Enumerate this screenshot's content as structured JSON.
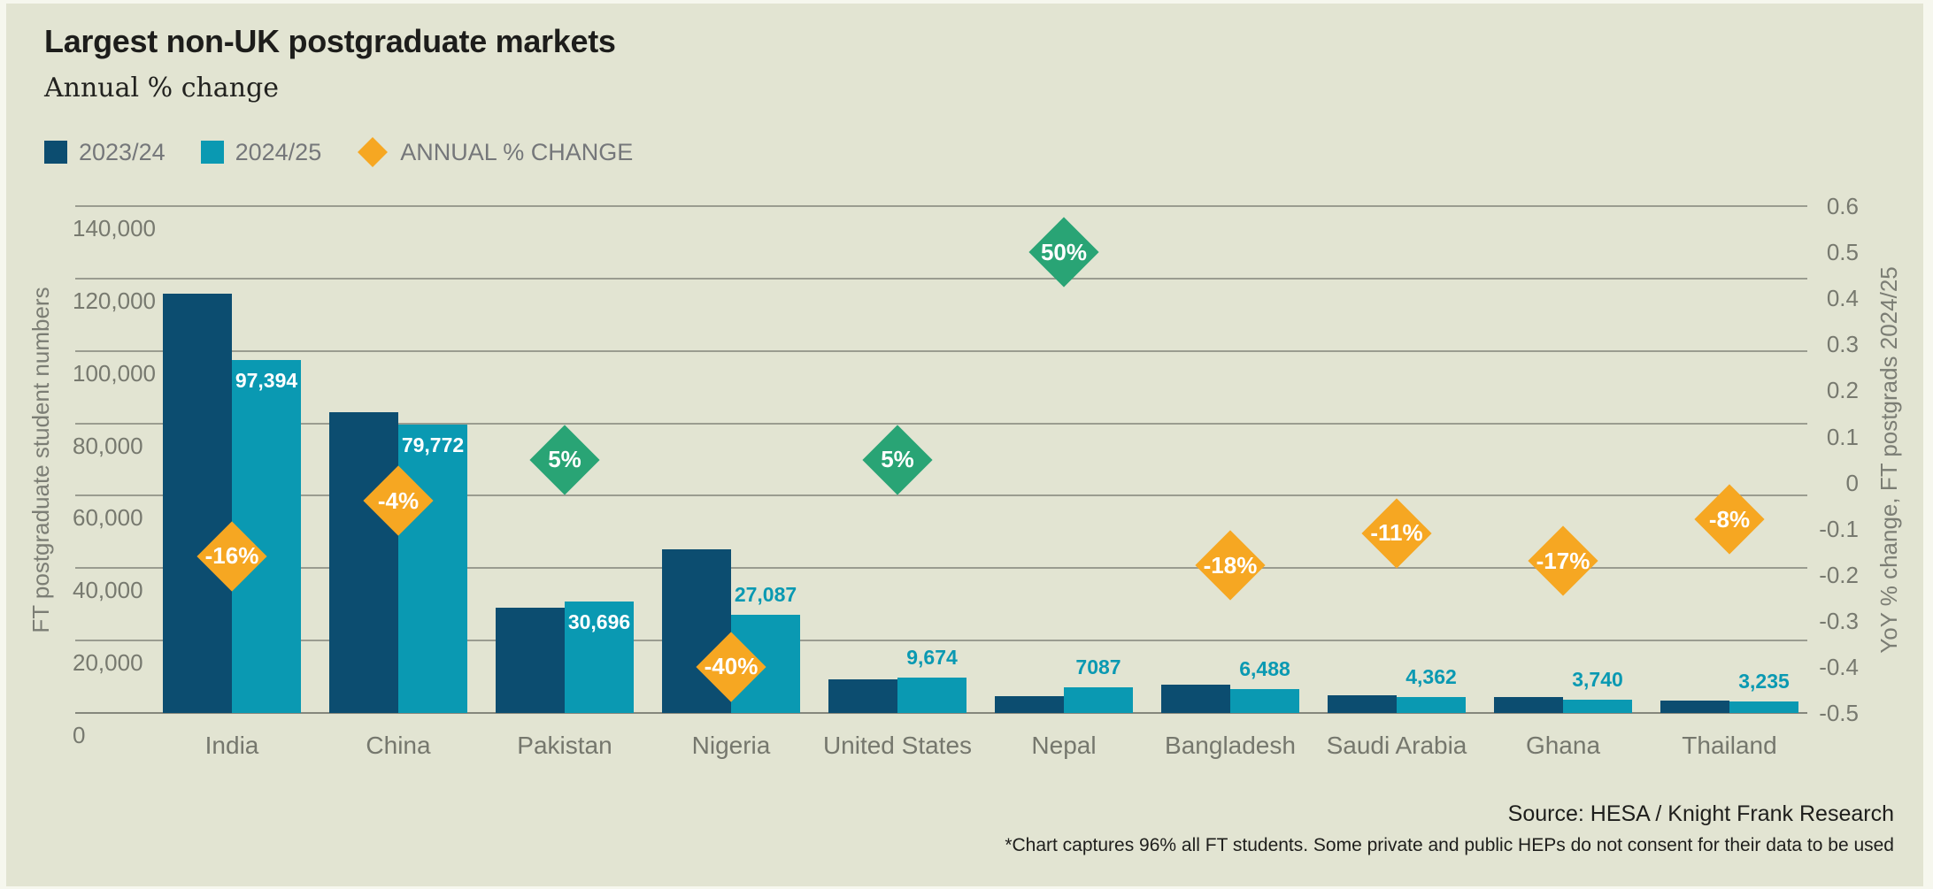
{
  "page": {
    "background": "#e2e4d2",
    "edge_color": "#f6f7ee"
  },
  "header": {
    "title": "Largest non-UK postgraduate markets",
    "subtitle": "Annual % change"
  },
  "legend": {
    "items": [
      {
        "label": "2023/24",
        "swatch": "square",
        "color": "#0c4d70"
      },
      {
        "label": "2024/25",
        "swatch": "square",
        "color": "#0a99b2"
      },
      {
        "label": "ANNUAL % CHANGE",
        "swatch": "diamond",
        "color": "#f6a722"
      }
    ]
  },
  "chart_data": {
    "type": "bar",
    "title": "Largest non-UK postgraduate markets",
    "subtitle": "Annual % change",
    "grid": true,
    "categories": [
      "India",
      "China",
      "Pakistan",
      "Nigeria",
      "United States",
      "Nepal",
      "Bangladesh",
      "Saudi Arabia",
      "Ghana",
      "Thailand"
    ],
    "series": [
      {
        "name": "2023/24",
        "color": "#0c4d70",
        "values": [
          115900,
          83100,
          29200,
          45100,
          9200,
          4700,
          7900,
          4900,
          4500,
          3500
        ]
      },
      {
        "name": "2024/25",
        "color": "#0a99b2",
        "values": [
          97394,
          79772,
          30696,
          27087,
          9674,
          7087,
          6488,
          4362,
          3740,
          3235
        ]
      }
    ],
    "bar_labels": [
      "97,394",
      "79,772",
      "30,696",
      "27,087",
      "9,674",
      "7087",
      "6,488",
      "4,362",
      "3,740",
      "3,235"
    ],
    "bar_label_position": [
      "inside",
      "inside",
      "inside",
      "above",
      "above",
      "above",
      "above",
      "above",
      "above",
      "above"
    ],
    "bar_label_colors": {
      "inside": "#ffffff",
      "above": "#0a99b2"
    },
    "markers": {
      "name": "ANNUAL % CHANGE",
      "values": [
        -0.16,
        -0.04,
        0.05,
        -0.4,
        0.05,
        0.5,
        -0.18,
        -0.11,
        -0.17,
        -0.08
      ],
      "labels": [
        "-16%",
        "-4%",
        "5%",
        "-40%",
        "5%",
        "50%",
        "-18%",
        "-11%",
        "-17%",
        "-8%"
      ],
      "positive_color": "#29a475",
      "negative_color": "#f6a722"
    },
    "left_axis": {
      "title": "FT postgraduate student numbers",
      "min": 0,
      "max": 140000,
      "tick_values": [
        140000,
        120000,
        100000,
        80000,
        60000,
        40000,
        20000,
        0
      ],
      "tick_labels": [
        "140,000",
        "120,000",
        "100,000",
        "80,000",
        "60,000",
        "40,000",
        "20,000",
        "0"
      ]
    },
    "right_axis": {
      "title": "YoY % change, FT postgrads 2024/25",
      "min": -0.5,
      "max": 0.6,
      "tick_values": [
        0.6,
        0.5,
        0.4,
        0.3,
        0.2,
        0.1,
        0,
        -0.1,
        -0.2,
        -0.3,
        -0.4,
        -0.5
      ],
      "tick_labels": [
        "0.6",
        "0.5",
        "0.4",
        "0.3",
        "0.2",
        "0.1",
        "0",
        "-0.1",
        "-0.2",
        "-0.3",
        "-0.4",
        "-0.5"
      ]
    },
    "gridline_color": "#9a9c90",
    "baseline_color": "#85877c"
  },
  "footer": {
    "source": "Source: HESA / Knight Frank Research",
    "footnote": "*Chart captures 96% all FT students. Some private and public HEPs do not consent for their data to be used"
  }
}
